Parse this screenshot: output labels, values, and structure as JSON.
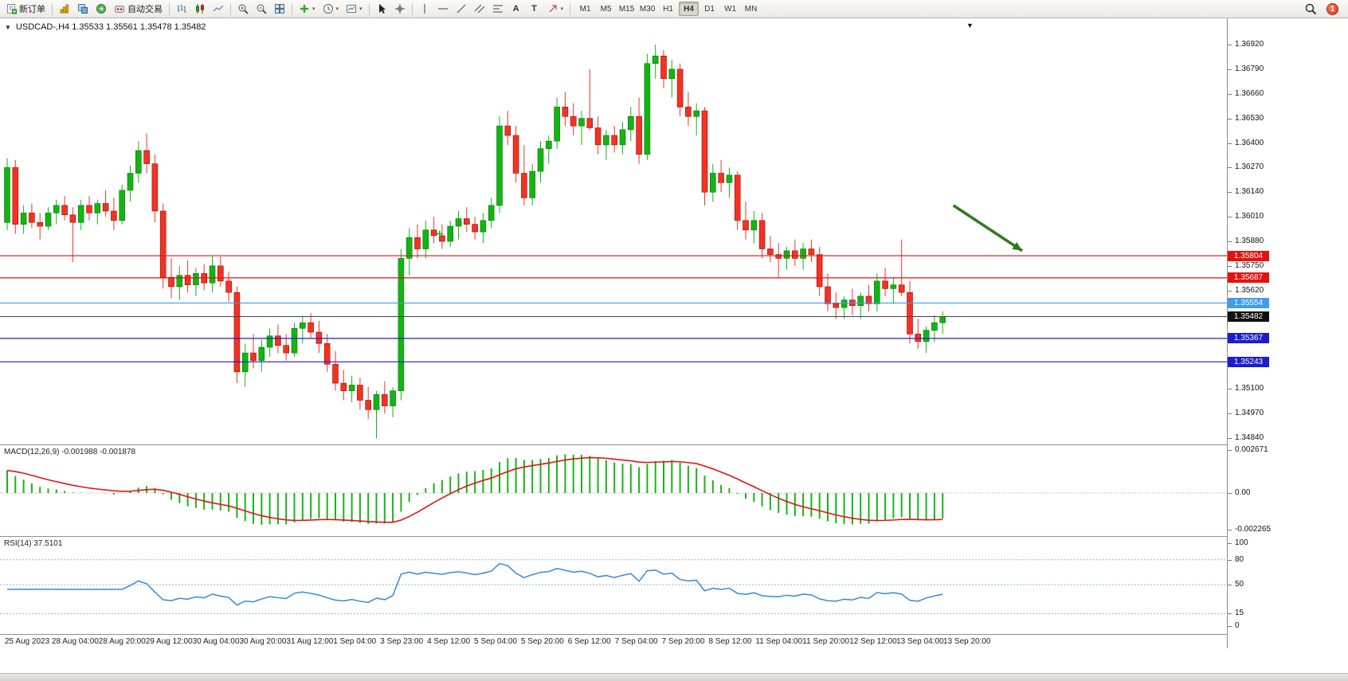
{
  "icons": {
    "dropdown": "▼",
    "dropdown_small": "▾"
  },
  "toolbar": {
    "new_order": "新订单",
    "auto_trading": "自动交易",
    "text_tool": "A",
    "label_tool": "T",
    "timeframes": [
      "M1",
      "M5",
      "M15",
      "M30",
      "H1",
      "H4",
      "D1",
      "W1",
      "MN"
    ],
    "active_timeframe": "H4",
    "notification_count": "1"
  },
  "chart": {
    "title": "USDCAD-,H4  1.35533 1.35561 1.35478 1.35482",
    "price_levels": [
      {
        "label": "1.35804",
        "value": 1.35804,
        "color": "#e31212",
        "tag_bg": "#e31212",
        "current": false
      },
      {
        "label": "1.35687",
        "value": 1.35687,
        "color": "#e31212",
        "tag_bg": "#e31212",
        "current": false
      },
      {
        "label": "1.35554",
        "value": 1.35554,
        "color": "#3e9df2",
        "tag_bg": "#3e9df2",
        "current": false
      },
      {
        "label": "1.35482",
        "value": 1.35482,
        "color": "#444444",
        "tag_bg": "#111111",
        "current": true
      },
      {
        "label": "1.35367",
        "value": 1.35367,
        "color": "#1d1dcf",
        "tag_bg": "#1d1dcf",
        "current": false
      },
      {
        "label": "1.35243",
        "value": 1.35243,
        "color": "#1d1dcf",
        "tag_bg": "#1d1dcf",
        "current": false
      }
    ],
    "price_axis": [
      "1.36920",
      "1.36790",
      "1.36660",
      "1.36530",
      "1.36400",
      "1.36270",
      "1.36140",
      "1.36010",
      "1.35880",
      "1.35750",
      "1.35620",
      "1.35490",
      "1.35360",
      "1.35230",
      "1.35100",
      "1.34970",
      "1.34840"
    ],
    "time_axis": [
      "25 Aug 2023",
      "28 Aug 04:00",
      "28 Aug 20:00",
      "29 Aug 12:00",
      "30 Aug 04:00",
      "30 Aug 20:00",
      "31 Aug 12:00",
      "1 Sep 04:00",
      "3 Sep 23:00",
      "4 Sep 12:00",
      "5 Sep 04:00",
      "5 Sep 20:00",
      "6 Sep 12:00",
      "7 Sep 04:00",
      "7 Sep 20:00",
      "8 Sep 12:00",
      "11 Sep 04:00",
      "11 Sep 20:00",
      "12 Sep 12:00",
      "13 Sep 04:00",
      "13 Sep 20:00"
    ]
  },
  "macd": {
    "label": "MACD(12,26,9) -0.001988 -0.001878",
    "axis_top": "0.002671",
    "axis_zero": "0.00",
    "axis_bottom": "-0.002265"
  },
  "rsi": {
    "label": "RSI(14) 37.5101",
    "axis": [
      "100",
      "80",
      "50",
      "15",
      "0"
    ],
    "levels": [
      80,
      50,
      15
    ]
  },
  "chart_data": {
    "type": "candlestick",
    "symbol": "USDCAD-",
    "timeframe": "H4",
    "ohlc_current": {
      "open": 1.35533,
      "high": 1.35561,
      "low": 1.35478,
      "close": 1.35482
    },
    "price_range": [
      1.3484,
      1.3692
    ],
    "grid_step": 0.0013,
    "colors": {
      "up": "#13b413",
      "down": "#f43224",
      "up_border": "#067806",
      "down_border": "#8c1208",
      "macd_hist": "#18b418",
      "macd_signal": "#e21414",
      "rsi_line": "#3a87d8",
      "arrow": "#35781f"
    },
    "indicators": {
      "macd": {
        "fast": 12,
        "slow": 26,
        "signal": 9,
        "current_macd": -0.001988,
        "current_signal": -0.001878
      },
      "rsi": {
        "period": 14,
        "current": 37.5101
      }
    },
    "annotations": {
      "arrow": {
        "from_index": 115.3,
        "from_price": 1.3607,
        "to_index": 123.7,
        "to_price": 1.3583
      },
      "plus_marker": {
        "index": 52.7,
        "price": 1.3592
      }
    },
    "candles": [
      [
        1.3598,
        1.3632,
        1.3594,
        1.3627
      ],
      [
        1.3627,
        1.3631,
        1.3592,
        1.3597
      ],
      [
        1.3597,
        1.3607,
        1.3592,
        1.3603
      ],
      [
        1.3603,
        1.3608,
        1.3595,
        1.3598
      ],
      [
        1.3598,
        1.3603,
        1.3589,
        1.3596
      ],
      [
        1.3596,
        1.3606,
        1.3594,
        1.3603
      ],
      [
        1.3603,
        1.361,
        1.3597,
        1.3607
      ],
      [
        1.3607,
        1.3612,
        1.3599,
        1.3602
      ],
      [
        1.3602,
        1.3606,
        1.3577,
        1.3598
      ],
      [
        1.3598,
        1.361,
        1.3594,
        1.3607
      ],
      [
        1.3607,
        1.3612,
        1.3599,
        1.3603
      ],
      [
        1.3603,
        1.361,
        1.3597,
        1.3608
      ],
      [
        1.3608,
        1.3615,
        1.3601,
        1.3604
      ],
      [
        1.3604,
        1.3611,
        1.3594,
        1.3599
      ],
      [
        1.3599,
        1.3618,
        1.3597,
        1.3615
      ],
      [
        1.3615,
        1.3628,
        1.3609,
        1.3624
      ],
      [
        1.3624,
        1.3641,
        1.3619,
        1.3636
      ],
      [
        1.3636,
        1.3645,
        1.3624,
        1.3629
      ],
      [
        1.3629,
        1.3634,
        1.3598,
        1.3604
      ],
      [
        1.3604,
        1.3608,
        1.3563,
        1.3569
      ],
      [
        1.3569,
        1.3579,
        1.3558,
        1.3564
      ],
      [
        1.3564,
        1.3575,
        1.3557,
        1.357
      ],
      [
        1.357,
        1.3578,
        1.3561,
        1.3565
      ],
      [
        1.3565,
        1.3574,
        1.3559,
        1.3571
      ],
      [
        1.3571,
        1.3576,
        1.3562,
        1.3566
      ],
      [
        1.3566,
        1.358,
        1.3561,
        1.3575
      ],
      [
        1.3575,
        1.358,
        1.3564,
        1.3567
      ],
      [
        1.3567,
        1.3572,
        1.3556,
        1.3561
      ],
      [
        1.3561,
        1.3564,
        1.3513,
        1.3519
      ],
      [
        1.3519,
        1.3534,
        1.3511,
        1.3529
      ],
      [
        1.3529,
        1.3539,
        1.3521,
        1.3525
      ],
      [
        1.3525,
        1.3536,
        1.3519,
        1.3532
      ],
      [
        1.3532,
        1.3542,
        1.3527,
        1.3538
      ],
      [
        1.3538,
        1.3544,
        1.3529,
        1.3533
      ],
      [
        1.3533,
        1.3539,
        1.3525,
        1.3529
      ],
      [
        1.3529,
        1.3545,
        1.3527,
        1.3542
      ],
      [
        1.3542,
        1.3548,
        1.3534,
        1.3545
      ],
      [
        1.3545,
        1.355,
        1.3537,
        1.354
      ],
      [
        1.354,
        1.3546,
        1.3529,
        1.3534
      ],
      [
        1.3534,
        1.3539,
        1.3519,
        1.3523
      ],
      [
        1.3523,
        1.353,
        1.3509,
        1.3513
      ],
      [
        1.3513,
        1.352,
        1.3504,
        1.3509
      ],
      [
        1.3509,
        1.3517,
        1.3503,
        1.3512
      ],
      [
        1.3512,
        1.3516,
        1.3499,
        1.3504
      ],
      [
        1.3504,
        1.3511,
        1.3494,
        1.3499
      ],
      [
        1.3499,
        1.3509,
        1.3484,
        1.3507
      ],
      [
        1.3507,
        1.3514,
        1.3497,
        1.3501
      ],
      [
        1.3501,
        1.3511,
        1.3495,
        1.3509
      ],
      [
        1.3509,
        1.3584,
        1.3504,
        1.3579
      ],
      [
        1.3579,
        1.3595,
        1.357,
        1.359
      ],
      [
        1.359,
        1.3597,
        1.3579,
        1.3584
      ],
      [
        1.3584,
        1.3599,
        1.3579,
        1.3594
      ],
      [
        1.3594,
        1.3601,
        1.3587,
        1.3591
      ],
      [
        1.3591,
        1.3597,
        1.3584,
        1.3588
      ],
      [
        1.3588,
        1.3599,
        1.3585,
        1.3596
      ],
      [
        1.3596,
        1.3604,
        1.3589,
        1.36
      ],
      [
        1.36,
        1.3606,
        1.3593,
        1.3597
      ],
      [
        1.3597,
        1.3601,
        1.3589,
        1.3593
      ],
      [
        1.3593,
        1.3603,
        1.3587,
        1.3599
      ],
      [
        1.3599,
        1.3611,
        1.3595,
        1.3607
      ],
      [
        1.3607,
        1.3654,
        1.3603,
        1.3649
      ],
      [
        1.3649,
        1.3657,
        1.3639,
        1.3644
      ],
      [
        1.3644,
        1.3649,
        1.3619,
        1.3624
      ],
      [
        1.3624,
        1.3639,
        1.3607,
        1.3611
      ],
      [
        1.3611,
        1.3629,
        1.3607,
        1.3625
      ],
      [
        1.3625,
        1.3641,
        1.3619,
        1.3637
      ],
      [
        1.3637,
        1.3644,
        1.3629,
        1.3641
      ],
      [
        1.3641,
        1.3664,
        1.3637,
        1.3659
      ],
      [
        1.3659,
        1.3667,
        1.3649,
        1.3654
      ],
      [
        1.3654,
        1.3661,
        1.3644,
        1.3649
      ],
      [
        1.3649,
        1.3657,
        1.3639,
        1.3653
      ],
      [
        1.3653,
        1.3679,
        1.3647,
        1.3648
      ],
      [
        1.3648,
        1.3654,
        1.3634,
        1.3639
      ],
      [
        1.3639,
        1.3647,
        1.3631,
        1.3644
      ],
      [
        1.3644,
        1.3649,
        1.3635,
        1.3639
      ],
      [
        1.3639,
        1.3651,
        1.3634,
        1.3647
      ],
      [
        1.3647,
        1.3659,
        1.3641,
        1.3654
      ],
      [
        1.3654,
        1.3664,
        1.3629,
        1.3634
      ],
      [
        1.3634,
        1.3687,
        1.3631,
        1.3682
      ],
      [
        1.3682,
        1.3692,
        1.3674,
        1.3686
      ],
      [
        1.3686,
        1.3689,
        1.3669,
        1.3674
      ],
      [
        1.3674,
        1.3684,
        1.3664,
        1.3679
      ],
      [
        1.3679,
        1.3682,
        1.3654,
        1.3659
      ],
      [
        1.3659,
        1.3667,
        1.3649,
        1.3654
      ],
      [
        1.3654,
        1.3661,
        1.3644,
        1.3657
      ],
      [
        1.3657,
        1.3659,
        1.3607,
        1.3614
      ],
      [
        1.3614,
        1.3629,
        1.3609,
        1.3624
      ],
      [
        1.3624,
        1.3631,
        1.3614,
        1.3619
      ],
      [
        1.3619,
        1.3627,
        1.3611,
        1.3623
      ],
      [
        1.3623,
        1.3625,
        1.3594,
        1.3599
      ],
      [
        1.3599,
        1.3609,
        1.3589,
        1.3594
      ],
      [
        1.3594,
        1.3604,
        1.3587,
        1.3599
      ],
      [
        1.3599,
        1.3603,
        1.3579,
        1.3584
      ],
      [
        1.3584,
        1.3591,
        1.3577,
        1.3581
      ],
      [
        1.3581,
        1.3587,
        1.3569,
        1.3579
      ],
      [
        1.3579,
        1.3585,
        1.3573,
        1.3583
      ],
      [
        1.3583,
        1.3589,
        1.3575,
        1.3579
      ],
      [
        1.3579,
        1.3587,
        1.3573,
        1.3584
      ],
      [
        1.3584,
        1.3589,
        1.3577,
        1.3581
      ],
      [
        1.3581,
        1.3585,
        1.3559,
        1.3564
      ],
      [
        1.3564,
        1.3571,
        1.3551,
        1.3555
      ],
      [
        1.3555,
        1.3561,
        1.3547,
        1.3553
      ],
      [
        1.3553,
        1.3559,
        1.3547,
        1.3557
      ],
      [
        1.3557,
        1.3563,
        1.3549,
        1.3554
      ],
      [
        1.3554,
        1.3561,
        1.3547,
        1.3559
      ],
      [
        1.3559,
        1.3565,
        1.3551,
        1.3555
      ],
      [
        1.3555,
        1.3571,
        1.3551,
        1.3567
      ],
      [
        1.3567,
        1.3574,
        1.3559,
        1.3563
      ],
      [
        1.3563,
        1.3569,
        1.3555,
        1.3565
      ],
      [
        1.3565,
        1.3589,
        1.3559,
        1.3561
      ],
      [
        1.3561,
        1.3567,
        1.3534,
        1.3539
      ],
      [
        1.3539,
        1.3547,
        1.3531,
        1.3535
      ],
      [
        1.3535,
        1.3543,
        1.3529,
        1.3541
      ],
      [
        1.3541,
        1.3549,
        1.3535,
        1.3545
      ],
      [
        1.3545,
        1.3551,
        1.3539,
        1.3548
      ]
    ]
  }
}
